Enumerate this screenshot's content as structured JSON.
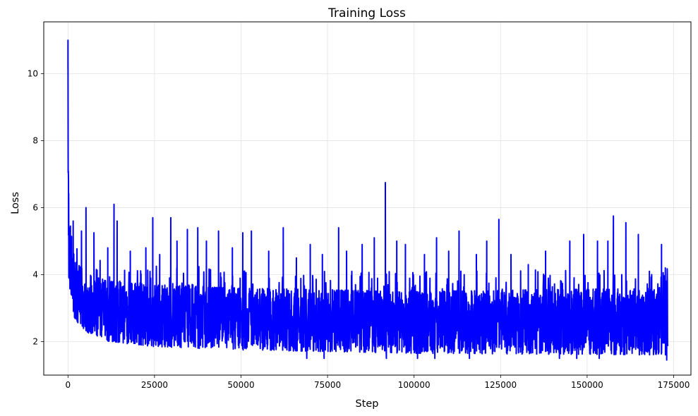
{
  "chart_data": {
    "type": "line",
    "title": "Training Loss",
    "xlabel": "Step",
    "ylabel": "Loss",
    "xlim": [
      -7000,
      180000
    ],
    "ylim": [
      1.0,
      11.55
    ],
    "xticks": [
      0,
      25000,
      50000,
      75000,
      100000,
      125000,
      150000,
      175000
    ],
    "yticks": [
      2,
      4,
      6,
      8,
      10
    ],
    "grid": true,
    "line_color": "#0000ff",
    "series": [
      {
        "name": "",
        "x_end": 173300,
        "band_upper": [
          [
            0,
            11.0
          ],
          [
            150,
            6.8
          ],
          [
            600,
            5.2
          ],
          [
            1500,
            4.7
          ],
          [
            3000,
            4.3
          ],
          [
            6000,
            4.0
          ],
          [
            12000,
            3.8
          ],
          [
            25000,
            3.7
          ],
          [
            50000,
            3.6
          ],
          [
            100000,
            3.5
          ],
          [
            173300,
            3.6
          ]
        ],
        "band_lower": [
          [
            0,
            4.6
          ],
          [
            150,
            3.9
          ],
          [
            600,
            3.1
          ],
          [
            1500,
            2.8
          ],
          [
            3000,
            2.5
          ],
          [
            6000,
            2.25
          ],
          [
            12000,
            2.0
          ],
          [
            25000,
            1.85
          ],
          [
            50000,
            1.75
          ],
          [
            100000,
            1.65
          ],
          [
            173300,
            1.6
          ]
        ],
        "spikes": [
          [
            0,
            11.0
          ],
          [
            150,
            6.8
          ],
          [
            700,
            5.45
          ],
          [
            1500,
            5.6
          ],
          [
            3900,
            5.3
          ],
          [
            5200,
            6.0
          ],
          [
            7500,
            5.25
          ],
          [
            11500,
            4.8
          ],
          [
            13300,
            6.1
          ],
          [
            14200,
            5.6
          ],
          [
            18000,
            4.7
          ],
          [
            22500,
            4.8
          ],
          [
            24500,
            5.7
          ],
          [
            26500,
            4.6
          ],
          [
            29700,
            5.7
          ],
          [
            31500,
            5.0
          ],
          [
            34500,
            5.35
          ],
          [
            37500,
            5.4
          ],
          [
            40000,
            5.0
          ],
          [
            43500,
            5.3
          ],
          [
            47500,
            4.8
          ],
          [
            50500,
            5.25
          ],
          [
            53000,
            5.3
          ],
          [
            58000,
            4.7
          ],
          [
            62200,
            5.4
          ],
          [
            66000,
            4.5
          ],
          [
            70000,
            4.9
          ],
          [
            73500,
            4.6
          ],
          [
            78200,
            5.4
          ],
          [
            80500,
            4.7
          ],
          [
            85000,
            4.9
          ],
          [
            88500,
            5.1
          ],
          [
            91700,
            6.75
          ],
          [
            95000,
            5.0
          ],
          [
            97500,
            4.9
          ],
          [
            103000,
            4.6
          ],
          [
            106500,
            5.1
          ],
          [
            110000,
            4.7
          ],
          [
            113000,
            5.3
          ],
          [
            118000,
            4.6
          ],
          [
            121000,
            5.0
          ],
          [
            124500,
            5.65
          ],
          [
            128000,
            4.6
          ],
          [
            133000,
            4.3
          ],
          [
            138000,
            4.7
          ],
          [
            145000,
            5.0
          ],
          [
            149000,
            5.2
          ],
          [
            153000,
            5.0
          ],
          [
            156000,
            5.0
          ],
          [
            157600,
            5.75
          ],
          [
            160000,
            4.0
          ],
          [
            161200,
            5.55
          ],
          [
            164800,
            5.2
          ],
          [
            168000,
            4.1
          ],
          [
            171500,
            4.9
          ],
          [
            172600,
            4.2
          ]
        ],
        "dips": [
          [
            69000,
            1.5
          ],
          [
            74000,
            1.5
          ],
          [
            92000,
            1.5
          ],
          [
            101000,
            1.5
          ],
          [
            106000,
            1.5
          ],
          [
            116000,
            1.5
          ],
          [
            142000,
            1.5
          ],
          [
            147000,
            1.5
          ],
          [
            153500,
            1.5
          ],
          [
            173000,
            1.45
          ]
        ]
      }
    ]
  }
}
